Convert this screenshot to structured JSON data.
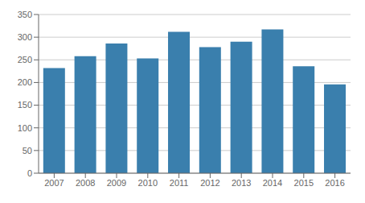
{
  "chart_data": {
    "type": "bar",
    "categories": [
      "2007",
      "2008",
      "2009",
      "2010",
      "2011",
      "2012",
      "2013",
      "2014",
      "2015",
      "2016"
    ],
    "values": [
      232,
      258,
      286,
      253,
      312,
      278,
      290,
      317,
      236,
      196
    ],
    "color": "#3a7fad",
    "ylim": [
      0,
      350
    ],
    "yticks": [
      0,
      50,
      100,
      150,
      200,
      250,
      300,
      350
    ],
    "grid": true
  }
}
